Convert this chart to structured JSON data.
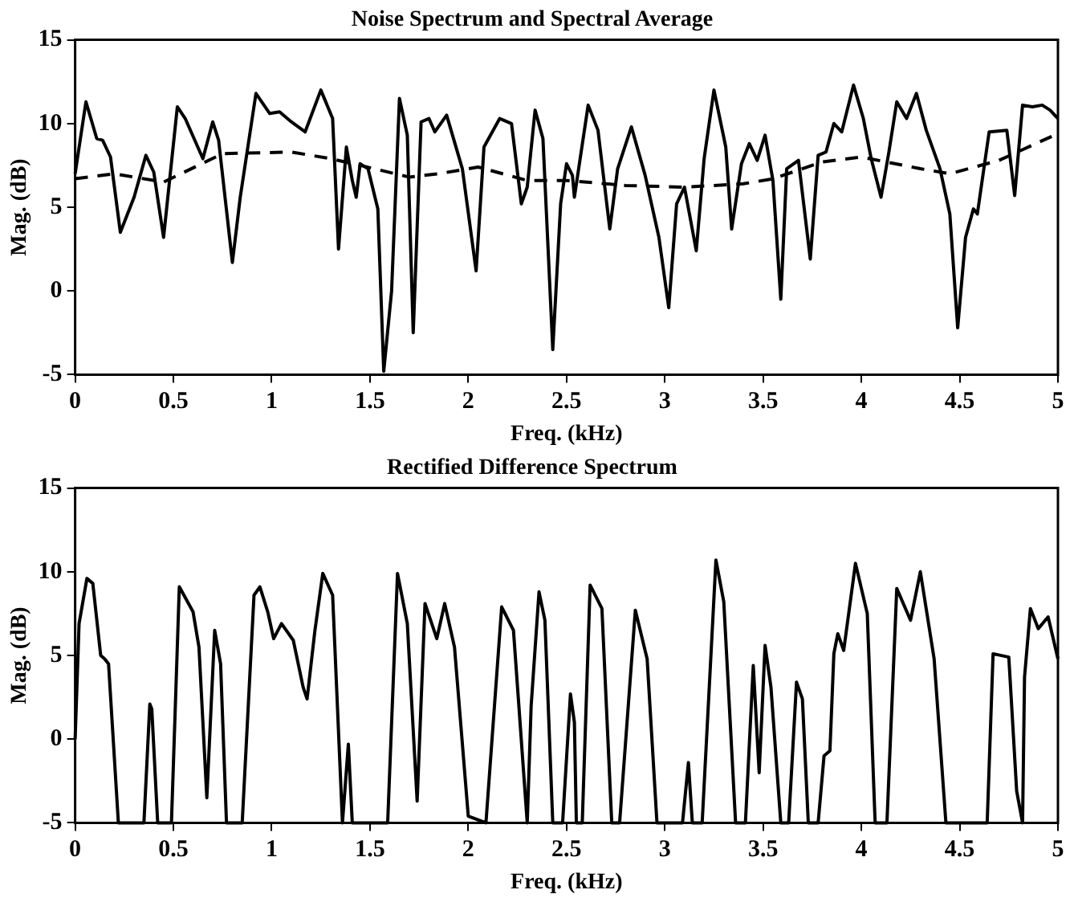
{
  "chart_data": [
    {
      "type": "line",
      "title": "Noise Spectrum and Spectral Average",
      "xlabel": "Freq. (kHz)",
      "ylabel": "Mag. (dB)",
      "xlim": [
        0,
        5
      ],
      "xticks": [
        0,
        0.5,
        1,
        1.5,
        2,
        2.5,
        3,
        3.5,
        4,
        4.5,
        5
      ],
      "ylim": [
        -5,
        15
      ],
      "yticks": [
        -5,
        0,
        5,
        10,
        15
      ],
      "grid": false,
      "series": [
        {
          "color": "#000000",
          "line_style": "solid",
          "x": [
            0,
            0.055,
            0.11,
            0.14,
            0.18,
            0.23,
            0.3,
            0.36,
            0.4,
            0.45,
            0.52,
            0.56,
            0.65,
            0.7,
            0.73,
            0.8,
            0.84,
            0.92,
            0.99,
            1.04,
            1.1,
            1.17,
            1.25,
            1.31,
            1.34,
            1.38,
            1.41,
            1.43,
            1.45,
            1.49,
            1.54,
            1.57,
            1.61,
            1.65,
            1.69,
            1.72,
            1.76,
            1.8,
            1.83,
            1.89,
            1.97,
            2.04,
            2.08,
            2.16,
            2.22,
            2.27,
            2.3,
            2.34,
            2.38,
            2.43,
            2.47,
            2.5,
            2.53,
            2.54,
            2.61,
            2.66,
            2.72,
            2.76,
            2.83,
            2.9,
            2.97,
            3.02,
            3.06,
            3.1,
            3.16,
            3.2,
            3.25,
            3.31,
            3.34,
            3.39,
            3.43,
            3.47,
            3.51,
            3.55,
            3.59,
            3.62,
            3.68,
            3.74,
            3.78,
            3.82,
            3.86,
            3.9,
            3.96,
            4.01,
            4.05,
            4.1,
            4.14,
            4.18,
            4.23,
            4.28,
            4.33,
            4.4,
            4.45,
            4.49,
            4.53,
            4.57,
            4.59,
            4.65,
            4.74,
            4.78,
            4.82,
            4.87,
            4.92,
            4.96,
            5
          ],
          "values": [
            7,
            11.3,
            9.1,
            9,
            8,
            3.5,
            5.6,
            8.1,
            7.1,
            3.2,
            11,
            10.3,
            7.9,
            10.1,
            9,
            1.7,
            5.6,
            11.8,
            10.6,
            10.7,
            10.1,
            9.5,
            12,
            10.3,
            2.5,
            8.6,
            6.6,
            5.6,
            7.6,
            7.3,
            4.9,
            -4.8,
            0,
            11.5,
            9.3,
            -2.5,
            10.1,
            10.3,
            9.5,
            10.5,
            7.3,
            1.2,
            8.6,
            10.3,
            10,
            5.2,
            6.2,
            10.8,
            9.1,
            -3.5,
            5.2,
            7.6,
            6.9,
            5.6,
            11.1,
            9.6,
            3.7,
            7.3,
            9.8,
            6.9,
            3.2,
            -1,
            5.2,
            6.2,
            2.4,
            7.9,
            12,
            8.6,
            3.7,
            7.6,
            8.8,
            7.8,
            9.3,
            6.6,
            -0.5,
            7.3,
            7.8,
            1.9,
            8.1,
            8.3,
            10,
            9.5,
            12.3,
            10.3,
            7.9,
            5.6,
            8.3,
            11.3,
            10.3,
            11.8,
            9.6,
            7.3,
            4.6,
            -2.2,
            3.2,
            4.9,
            4.6,
            9.5,
            9.6,
            5.7,
            11.1,
            11,
            11.1,
            10.8,
            10.3
          ]
        },
        {
          "color": "#000000",
          "line_style": "dashed",
          "x": [
            0,
            0.2,
            0.45,
            0.75,
            1.1,
            1.3,
            1.45,
            1.7,
            1.85,
            2.05,
            2.3,
            2.5,
            2.8,
            3.1,
            3.4,
            3.55,
            3.8,
            4,
            4.3,
            4.45,
            4.7,
            5
          ],
          "values": [
            6.7,
            7,
            6.5,
            8.2,
            8.3,
            7.9,
            7.5,
            6.8,
            7,
            7.4,
            6.6,
            6.6,
            6.3,
            6.2,
            6.4,
            6.7,
            7.7,
            8,
            7.3,
            7,
            7.8,
            9.4
          ]
        }
      ]
    },
    {
      "type": "line",
      "title": "Rectified Difference Spectrum",
      "xlabel": "Freq. (kHz)",
      "ylabel": "Mag. (dB)",
      "xlim": [
        0,
        5
      ],
      "xticks": [
        0,
        0.5,
        1,
        1.5,
        2,
        2.5,
        3,
        3.5,
        4,
        4.5,
        5
      ],
      "ylim": [
        -5,
        15
      ],
      "yticks": [
        -5,
        0,
        5,
        10,
        15
      ],
      "grid": false,
      "series": [
        {
          "color": "#000000",
          "line_style": "solid",
          "x": [
            0,
            0.02,
            0.06,
            0.09,
            0.13,
            0.15,
            0.17,
            0.22,
            0.35,
            0.38,
            0.39,
            0.42,
            0.49,
            0.53,
            0.6,
            0.63,
            0.67,
            0.71,
            0.74,
            0.77,
            0.85,
            0.91,
            0.94,
            0.98,
            1.01,
            1.05,
            1.11,
            1.16,
            1.18,
            1.22,
            1.26,
            1.31,
            1.36,
            1.39,
            1.41,
            1.59,
            1.64,
            1.69,
            1.74,
            1.78,
            1.84,
            1.88,
            1.93,
            2,
            2.09,
            2.17,
            2.23,
            2.3,
            2.32,
            2.36,
            2.39,
            2.43,
            2.48,
            2.52,
            2.54,
            2.55,
            2.58,
            2.62,
            2.68,
            2.73,
            2.77,
            2.85,
            2.91,
            2.96,
            3.09,
            3.12,
            3.14,
            3.19,
            3.26,
            3.3,
            3.36,
            3.41,
            3.45,
            3.48,
            3.51,
            3.54,
            3.59,
            3.63,
            3.67,
            3.7,
            3.73,
            3.78,
            3.81,
            3.84,
            3.86,
            3.88,
            3.91,
            3.97,
            4.03,
            4.07,
            4.13,
            4.18,
            4.25,
            4.3,
            4.37,
            4.43,
            4.64,
            4.67,
            4.75,
            4.79,
            4.82,
            4.83,
            4.86,
            4.9,
            4.95,
            5
          ],
          "values": [
            0,
            6.9,
            9.6,
            9.3,
            5,
            4.8,
            4.5,
            -5,
            -5,
            2.1,
            1.8,
            -5,
            -5,
            9.1,
            7.6,
            5.5,
            -3.5,
            6.5,
            4.5,
            -5,
            -5,
            8.6,
            9.1,
            7.6,
            6,
            6.9,
            5.9,
            3.1,
            2.4,
            6.5,
            9.9,
            8.6,
            -5,
            -0.3,
            -5,
            -5,
            9.9,
            6.9,
            -3.7,
            8.1,
            6,
            8.1,
            5.5,
            -4.6,
            -5,
            7.9,
            6.5,
            -5,
            2,
            8.8,
            7.1,
            -5,
            -5,
            2.7,
            1,
            -5,
            -5,
            9.2,
            7.8,
            -5,
            -5,
            7.7,
            4.8,
            -5,
            -5,
            -1.4,
            -5,
            -5,
            10.7,
            8.2,
            -5,
            -5,
            4.4,
            -2,
            5.6,
            3.1,
            -5,
            -5,
            3.4,
            2.4,
            -5,
            -5,
            -1,
            -0.7,
            5.1,
            6.3,
            5.3,
            10.5,
            7.5,
            -5,
            -5,
            9,
            7.1,
            10,
            4.8,
            -5,
            -5,
            5.1,
            4.9,
            -3.1,
            -5,
            3.7,
            7.8,
            6.6,
            7.3,
            4.8
          ]
        }
      ]
    }
  ]
}
